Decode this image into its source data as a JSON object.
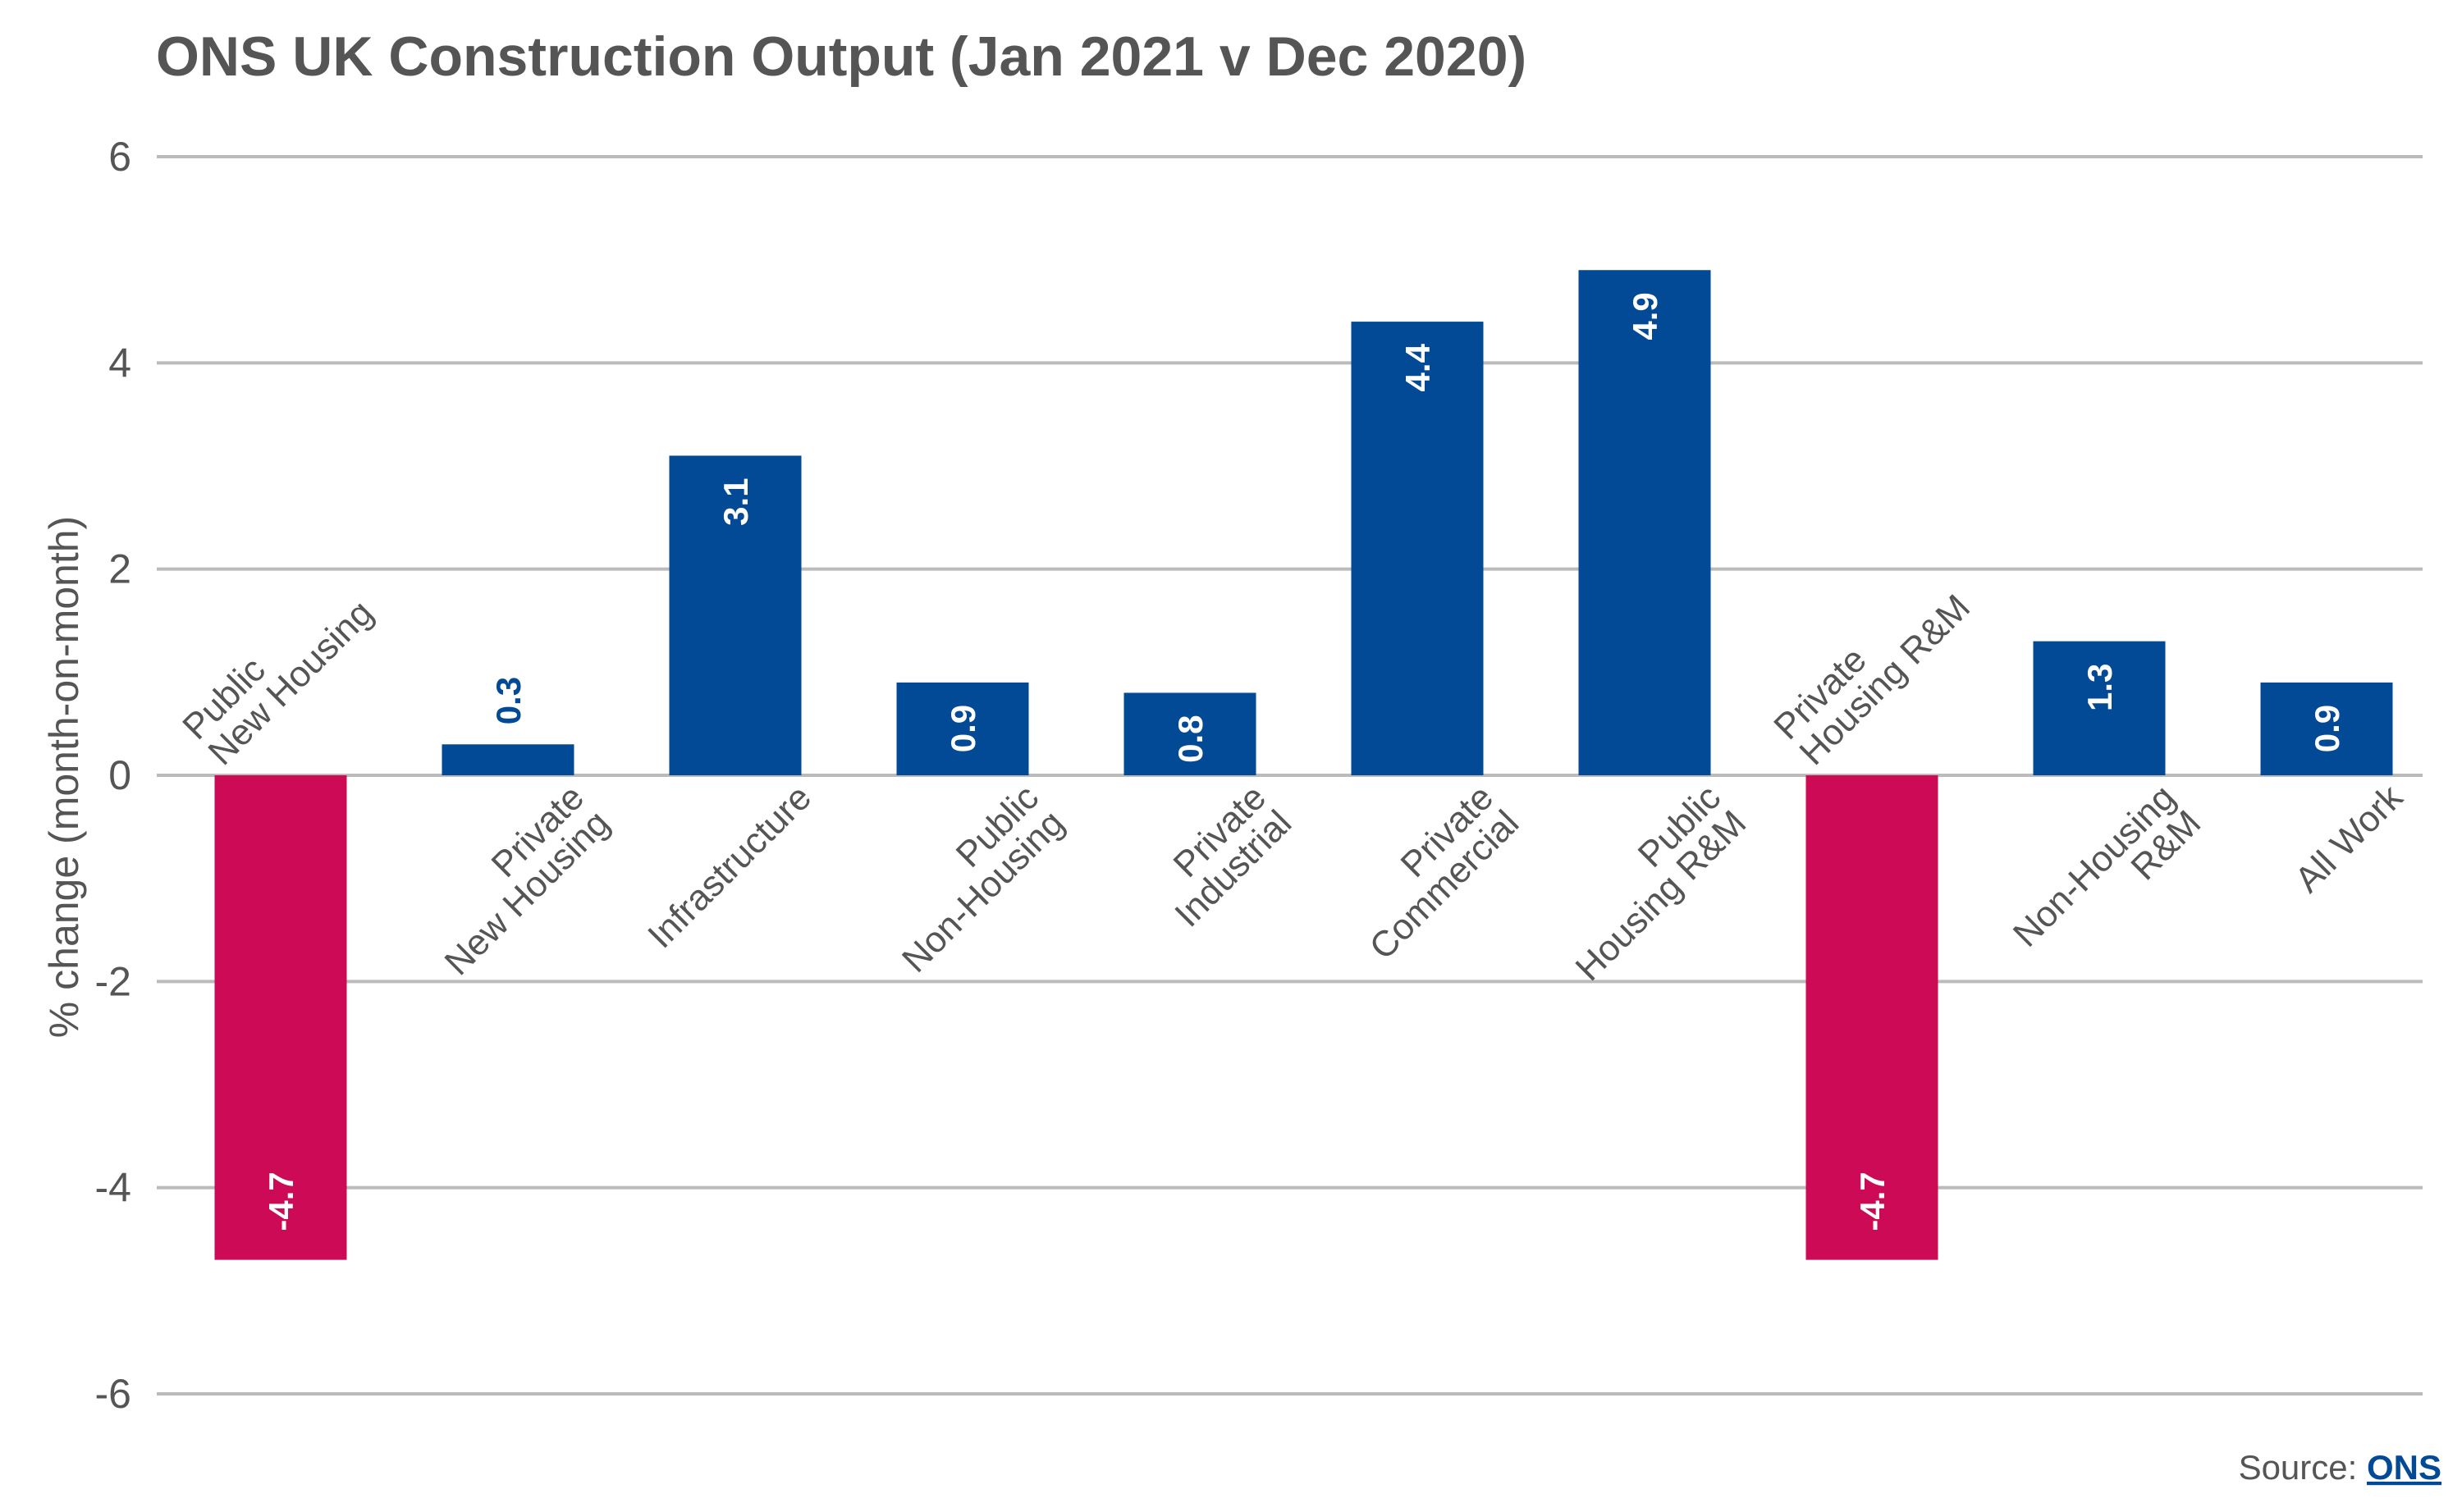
{
  "chart_data": {
    "type": "bar",
    "title": "ONS UK Construction Output (Jan 2021 v Dec 2020)",
    "ylabel": "% change (month-on-month)",
    "categories": [
      [
        "Public",
        "New Housing"
      ],
      [
        "Private",
        "New Housing"
      ],
      [
        "Infrastructure"
      ],
      [
        "Public",
        "Non-Housing"
      ],
      [
        "Private",
        "Industrial"
      ],
      [
        "Private",
        "Commercial"
      ],
      [
        "Public",
        "Housing R&M"
      ],
      [
        "Private",
        "Housing R&M"
      ],
      [
        "Non-Housing",
        "R&M"
      ],
      [
        "All Work"
      ]
    ],
    "values": [
      -4.7,
      0.3,
      3.1,
      0.9,
      0.8,
      4.4,
      4.9,
      -4.7,
      1.3,
      0.9
    ],
    "colors": [
      "#cc0a55",
      "#034a96",
      "#034a96",
      "#034a96",
      "#034a96",
      "#034a96",
      "#034a96",
      "#cc0a55",
      "#034a96",
      "#034a96"
    ],
    "ylim": [
      -6,
      6
    ],
    "yticks": [
      -6,
      -4,
      -2,
      0,
      2,
      4,
      6
    ],
    "grid": true,
    "source": {
      "prefix": "Source:",
      "link": "ONS"
    }
  }
}
